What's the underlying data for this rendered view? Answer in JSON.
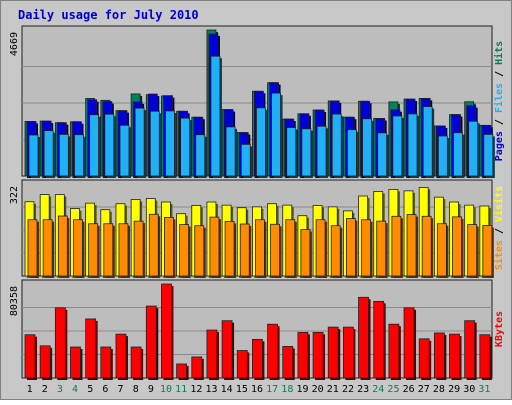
{
  "chart_data": [
    {
      "type": "bar",
      "title": "Daily usage for July 2010",
      "categories": [
        "1",
        "2",
        "3",
        "4",
        "5",
        "6",
        "7",
        "8",
        "9",
        "10",
        "11",
        "12",
        "13",
        "14",
        "15",
        "16",
        "17",
        "18",
        "19",
        "20",
        "21",
        "22",
        "23",
        "24",
        "25",
        "26",
        "27",
        "28",
        "29",
        "30",
        "31"
      ],
      "weekend_days": [
        "3",
        "4",
        "10",
        "11",
        "17",
        "18",
        "24",
        "25",
        "31"
      ],
      "y_tick_label": "4669",
      "ylim": [
        0,
        4669
      ],
      "series": [
        {
          "name": "Hits",
          "color": "#00805c",
          "values": [
            1745,
            1755,
            1705,
            1735,
            2480,
            2420,
            2090,
            2625,
            2600,
            2560,
            2070,
            1880,
            4669,
            2125,
            1390,
            2710,
            2985,
            1820,
            1990,
            2110,
            2400,
            1880,
            2390,
            1840,
            2370,
            2460,
            2480,
            1600,
            1965,
            2375,
            1620
          ]
        },
        {
          "name": "Pages",
          "color": "#0000d8",
          "values": [
            1745,
            1755,
            1705,
            1735,
            2440,
            2380,
            2090,
            2370,
            2620,
            2570,
            2070,
            1880,
            4540,
            2125,
            1390,
            2710,
            2985,
            1820,
            1990,
            2110,
            2400,
            1880,
            2390,
            1840,
            2120,
            2460,
            2480,
            1600,
            1965,
            2250,
            1620
          ]
        },
        {
          "name": "Files",
          "color": "#20b0f8",
          "values": [
            1310,
            1450,
            1330,
            1320,
            1960,
            1975,
            1620,
            2170,
            2070,
            2080,
            1850,
            1320,
            3830,
            1570,
            1010,
            2180,
            2650,
            1550,
            1510,
            1590,
            1980,
            1480,
            1830,
            1380,
            1920,
            1985,
            2220,
            1280,
            1385,
            1750,
            1330
          ]
        }
      ]
    },
    {
      "type": "bar",
      "y_tick_label": "322",
      "ylim": [
        0,
        322
      ],
      "series": [
        {
          "name": "Visits",
          "color": "#ffff00",
          "values": [
            260,
            285,
            285,
            236,
            255,
            232,
            253,
            268,
            271,
            259,
            218,
            247,
            259,
            248,
            239,
            242,
            253,
            248,
            211,
            247,
            242,
            228,
            280,
            296,
            303,
            298,
            310,
            276,
            259,
            248,
            245
          ]
        },
        {
          "name": "Sites",
          "color": "#ff8c00",
          "values": [
            197,
            197,
            210,
            197,
            183,
            183,
            183,
            192,
            216,
            205,
            180,
            176,
            206,
            191,
            182,
            197,
            181,
            197,
            163,
            197,
            176,
            201,
            197,
            192,
            209,
            215,
            209,
            183,
            207,
            180,
            177
          ]
        }
      ]
    },
    {
      "type": "bar",
      "y_tick_label": "80358",
      "ylim": [
        0,
        80358
      ],
      "series": [
        {
          "name": "KBytes",
          "color": "#ff0000",
          "values": [
            37000,
            27500,
            60000,
            26500,
            50500,
            26500,
            37500,
            26500,
            61500,
            80358,
            12000,
            18000,
            41000,
            49000,
            23500,
            33000,
            46000,
            27000,
            39000,
            39000,
            43500,
            43500,
            69000,
            65500,
            46000,
            60000,
            33500,
            38500,
            37500,
            49000,
            37000
          ]
        }
      ]
    }
  ]
}
